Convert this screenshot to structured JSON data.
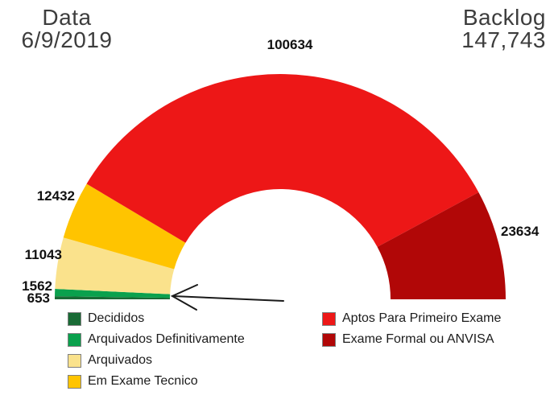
{
  "header": {
    "date_label": "Data",
    "date_value": "6/9/2019",
    "backlog_label": "Backlog",
    "backlog_value": "147,743"
  },
  "chart_data": {
    "type": "pie",
    "variant": "half-donut-gauge",
    "orientation": "semicircle-180-degrees",
    "segments": [
      {
        "label": "Decididos",
        "value": 653,
        "color": "#196B35"
      },
      {
        "label": "Arquivados Definitivamente",
        "value": 1562,
        "color": "#0AA14D"
      },
      {
        "label": "Arquivados",
        "value": 11043,
        "color": "#FAE28C"
      },
      {
        "label": "Em Exame Tecnico",
        "value": 12432,
        "color": "#FFC400"
      },
      {
        "label": "Aptos Para Primeiro Exame",
        "value": 100634,
        "color": "#ED1717"
      },
      {
        "label": "Exame Formal ou ANVISA",
        "value": 23634,
        "color": "#B10707"
      }
    ],
    "legend_columns": {
      "left": [
        0,
        1,
        2,
        3
      ],
      "right": [
        4,
        5
      ]
    },
    "legend_position": "bottom",
    "annotation": "arrow pointing to small green segments at lower-left of gauge"
  }
}
